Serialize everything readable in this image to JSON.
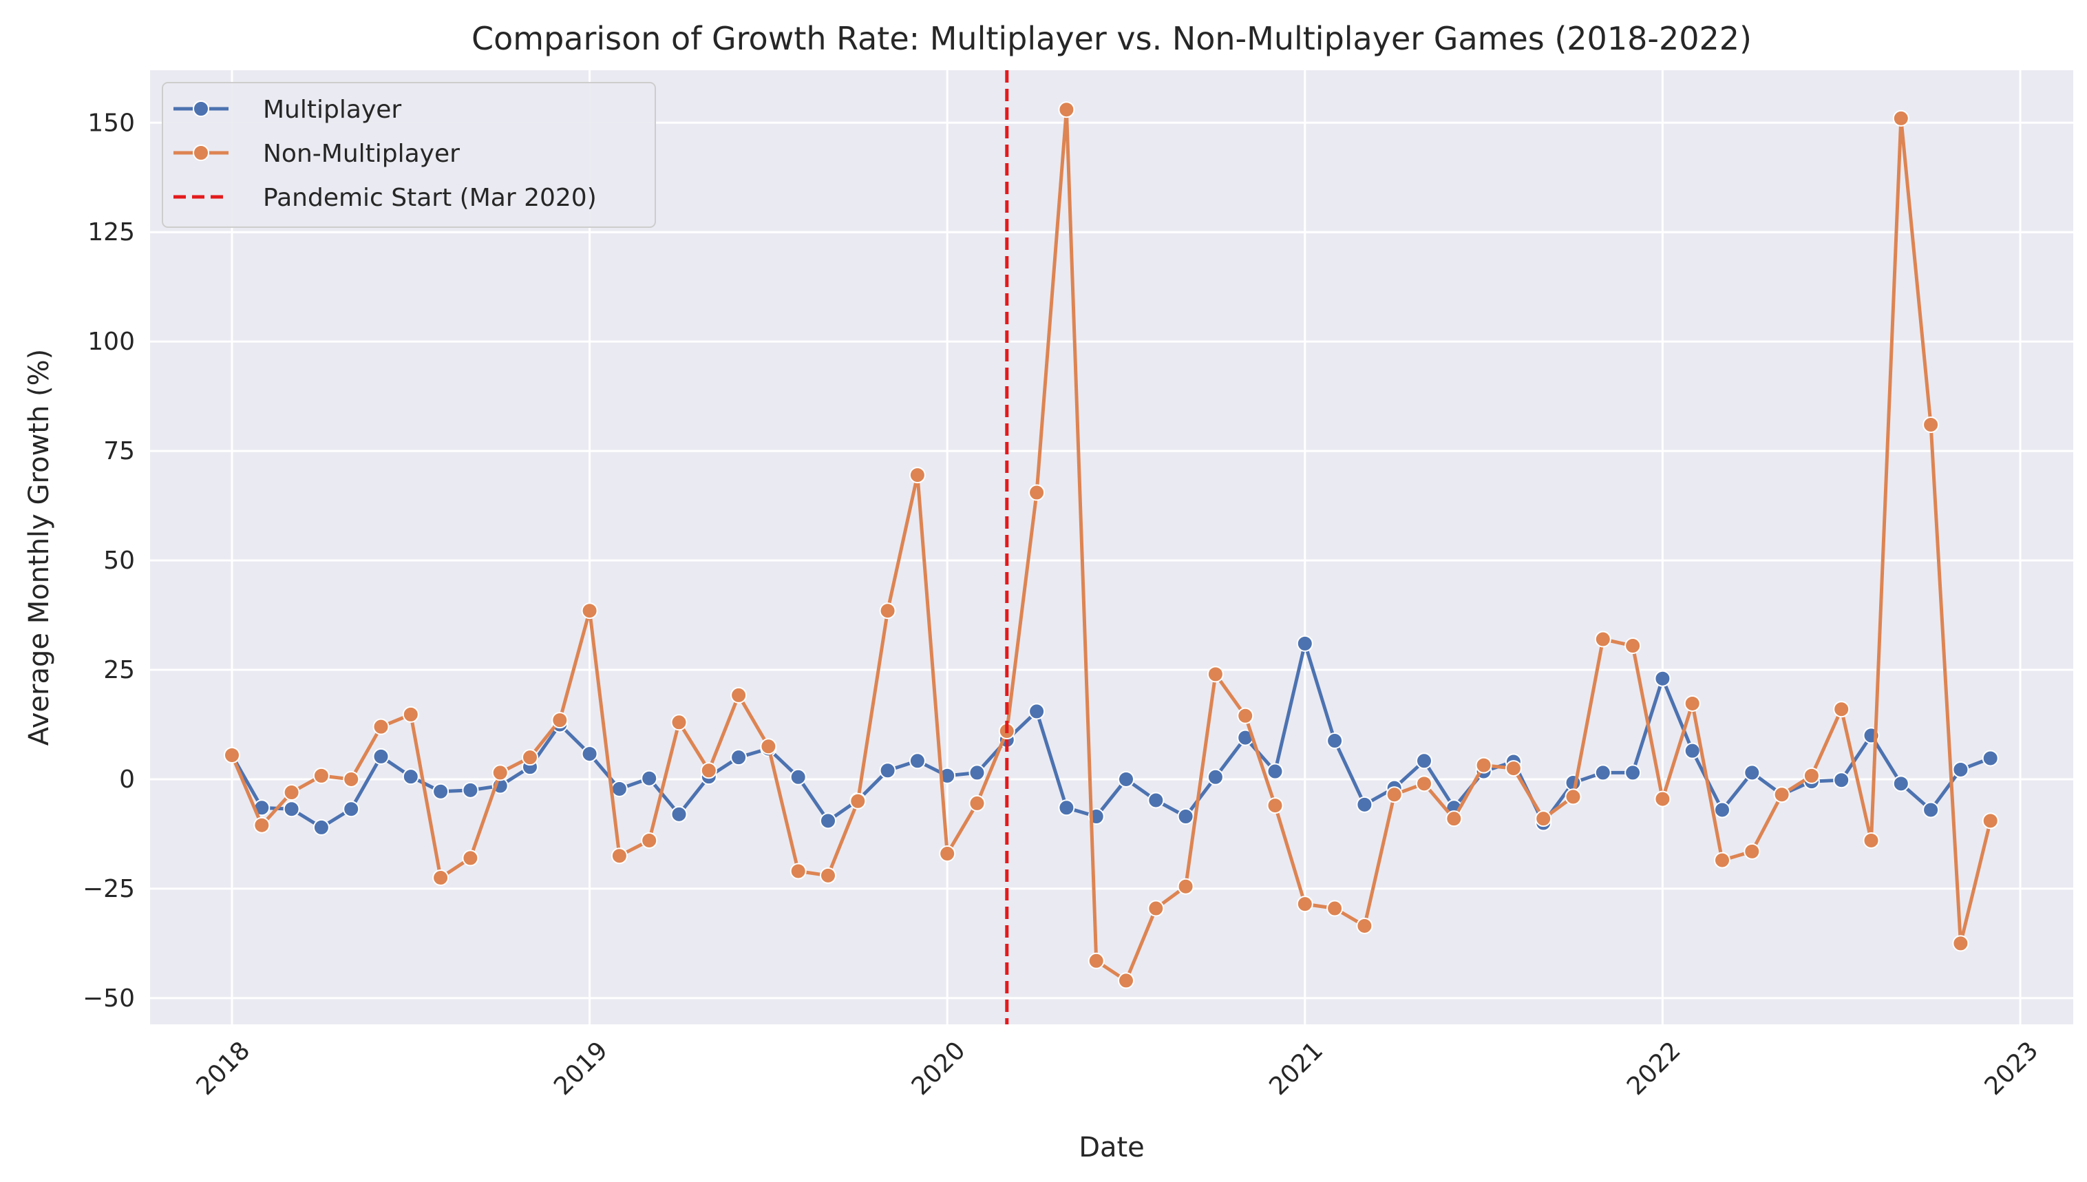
{
  "chart_data": {
    "type": "line",
    "title": "Comparison of Growth Rate: Multiplayer vs. Non-Multiplayer Games (2018-2022)",
    "xlabel": "Date",
    "ylabel": "Average Monthly Growth (%)",
    "x_start": "2018-01",
    "x_step": "1 month",
    "x_ticks": [
      "2018",
      "2019",
      "2020",
      "2021",
      "2022",
      "2023"
    ],
    "y_ticks": [
      -50,
      -25,
      0,
      25,
      50,
      75,
      100,
      125,
      150
    ],
    "ylim": [
      -56,
      162
    ],
    "grid": true,
    "legend_position": "top-left",
    "series": [
      {
        "name": "Multiplayer",
        "color": "#4c72b0",
        "values": [
          5.5,
          -6.5,
          -6.8,
          -11,
          -6.8,
          5.2,
          0.6,
          -2.8,
          -2.5,
          -1.5,
          2.8,
          12.5,
          5.8,
          -2.2,
          0.2,
          -8,
          0.6,
          5,
          7,
          0.5,
          -9.5,
          -4.8,
          2,
          4.2,
          0.8,
          1.5,
          9,
          15.5,
          -6.5,
          -8.5,
          0,
          -4.8,
          -8.5,
          0.5,
          9.5,
          1.8,
          31,
          8.8,
          -5.8,
          -2,
          4.2,
          -6.5,
          1.8,
          4,
          -10,
          -0.8,
          1.5,
          1.5,
          23,
          6.5,
          -7,
          1.5,
          -3.5,
          -0.5,
          -0.2,
          10,
          -1,
          -7,
          2.2,
          4.8
        ]
      },
      {
        "name": "Non-Multiplayer",
        "color": "#dd8452",
        "values": [
          5.5,
          -10.5,
          -3,
          0.8,
          0,
          12,
          14.8,
          -22.5,
          -18,
          1.5,
          5,
          13.5,
          38.5,
          -17.5,
          -14,
          13,
          2,
          19.2,
          7.5,
          -21,
          -22,
          -5,
          38.5,
          69.5,
          -17,
          -5.5,
          11,
          65.5,
          153,
          -41.5,
          -46,
          -29.5,
          -24.5,
          24,
          14.5,
          -6,
          -28.5,
          -29.5,
          -33.5,
          -3.5,
          -1,
          -9,
          3.2,
          2.5,
          -9,
          -4,
          32,
          30.5,
          -4.5,
          17.3,
          -18.5,
          -16.5,
          -3.5,
          0.8,
          16,
          -14,
          151,
          81,
          -37.5,
          -9.5
        ]
      }
    ],
    "annotations": [
      {
        "type": "vline",
        "x": "2020-03",
        "label": "Pandemic Start (Mar 2020)",
        "color": "#e31a1c",
        "style": "dashed"
      }
    ]
  }
}
